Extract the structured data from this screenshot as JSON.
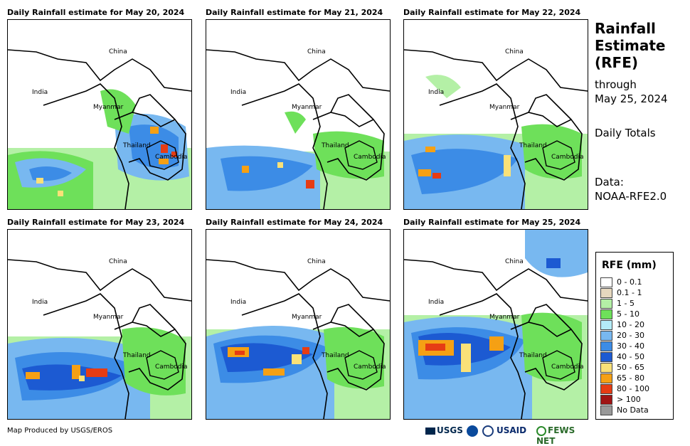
{
  "panels": [
    {
      "title": "Daily Rainfall estimate for May 20, 2024"
    },
    {
      "title": "Daily Rainfall estimate for May 21, 2024"
    },
    {
      "title": "Daily Rainfall estimate for May 22, 2024"
    },
    {
      "title": "Daily Rainfall estimate for May 23, 2024"
    },
    {
      "title": "Daily Rainfall estimate for May 24, 2024"
    },
    {
      "title": "Daily Rainfall estimate for May 25, 2024"
    }
  ],
  "labels": {
    "china": "China",
    "india": "India",
    "myanmar": "Myanmar",
    "thailand": "Thailand",
    "cambodia": "Cambodia"
  },
  "side": {
    "title_line1": "Rainfall",
    "title_line2": "Estimate",
    "title_line3": "(RFE)",
    "through": "through",
    "date": "May 25, 2024",
    "totals": "Daily Totals",
    "data_label": "Data:",
    "data_source": "NOAA-RFE2.0"
  },
  "legend": {
    "title": "RFE (mm)",
    "items": [
      {
        "label": "0 - 0.1",
        "color": "#ffffff"
      },
      {
        "label": "0.1 - 1",
        "color": "#e6d8bf"
      },
      {
        "label": "1 - 5",
        "color": "#b4f0a6"
      },
      {
        "label": "5 - 10",
        "color": "#6ee05a"
      },
      {
        "label": "10 - 20",
        "color": "#b4ecf8"
      },
      {
        "label": "20 - 30",
        "color": "#78b8f0"
      },
      {
        "label": "30 - 40",
        "color": "#3c8ce6"
      },
      {
        "label": "40 - 50",
        "color": "#1c5ad2"
      },
      {
        "label": "50 - 65",
        "color": "#fae178"
      },
      {
        "label": "65 - 80",
        "color": "#f5a014"
      },
      {
        "label": "80 - 100",
        "color": "#e63c14"
      },
      {
        "label": "> 100",
        "color": "#a01414"
      },
      {
        "label": "No Data",
        "color": "#999999"
      }
    ]
  },
  "footer": {
    "credit": "Map Produced by USGS/EROS"
  },
  "logos": {
    "usgs": "USGS",
    "usaid": "USAID",
    "fews": "FEWS NET"
  }
}
